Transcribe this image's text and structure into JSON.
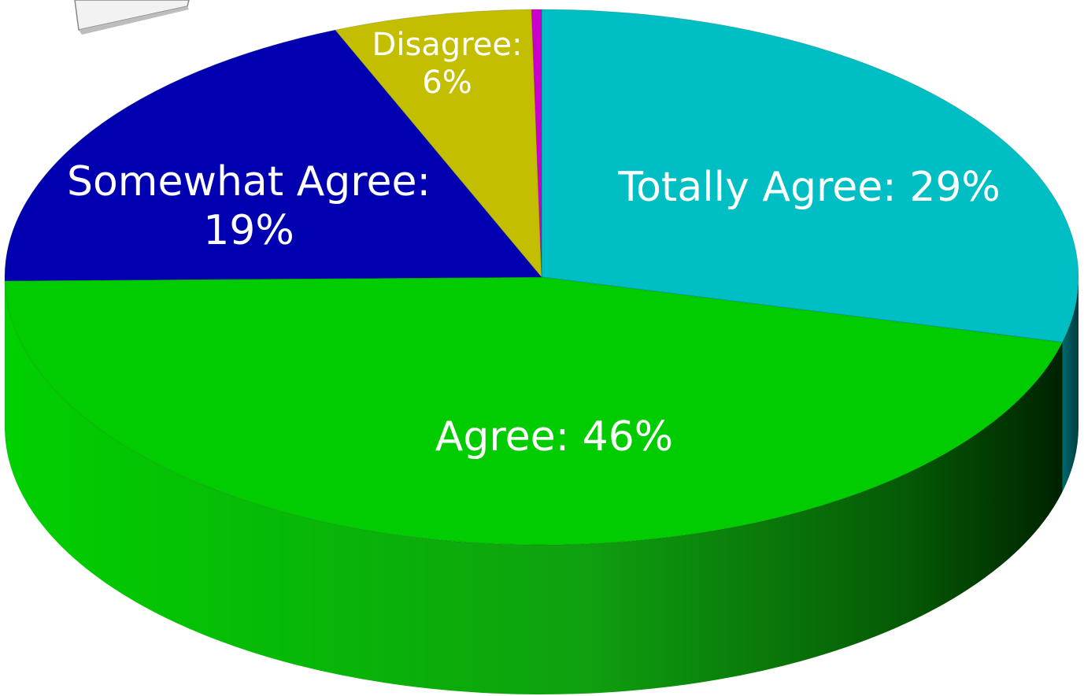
{
  "chart_data": {
    "type": "pie",
    "title": "",
    "slices": [
      {
        "label": "Totally Agree",
        "value": 29,
        "value_label": "29%",
        "color": "#00bfc4",
        "side_color": "#006d70"
      },
      {
        "label": "Agree",
        "value": 46,
        "value_label": "46%",
        "color": "#00cc00",
        "side_color": "#1a9f10"
      },
      {
        "label": "Somewhat Agree",
        "value": 19,
        "value_label": "19%",
        "color": "#0000b0",
        "side_color": "#00005e"
      },
      {
        "label": "Disagree",
        "value": 6,
        "value_label": "6%",
        "color": "#c3bf00",
        "side_color": "#7a7600"
      },
      {
        "label": "",
        "value": 0.3,
        "value_label": "",
        "color": "#cc00cc",
        "side_color": "#770077"
      }
    ],
    "style": "3d-pie"
  }
}
